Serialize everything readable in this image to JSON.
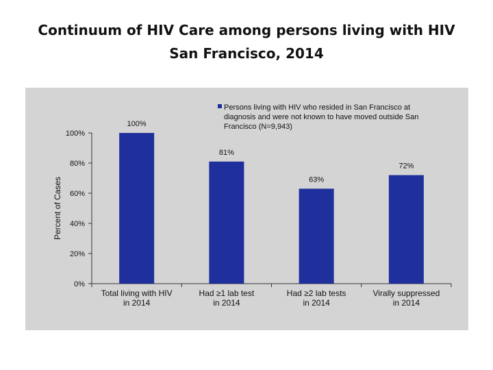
{
  "slide": {
    "title_line1": "Continuum of HIV Care among persons living with HIV",
    "title_line2": "San Francisco, 2014"
  },
  "colors": {
    "bar": "#1f2f9b",
    "panel": "#d4d4d4"
  },
  "chart_data": {
    "type": "bar",
    "categories": [
      [
        "Total living with HIV",
        "in 2014"
      ],
      [
        "Had  ≥1 lab test",
        "in 2014"
      ],
      [
        "Had  ≥2 lab tests",
        "in 2014"
      ],
      [
        "Virally suppressed",
        "in 2014"
      ]
    ],
    "series": [
      {
        "name_lines": [
          "Persons living with HIV who resided in San Francisco at",
          "diagnosis and were not known to have moved outside San",
          "Francisco (N=9,943)"
        ],
        "values": [
          100,
          81,
          63,
          72
        ],
        "labels": [
          "100%",
          "81%",
          "63%",
          "72%"
        ]
      }
    ],
    "ylabel": "Percent of Cases",
    "xlabel": "",
    "ylim": [
      0,
      100
    ],
    "yticks": [
      0,
      20,
      40,
      60,
      80,
      100
    ],
    "ytick_labels": [
      "0%",
      "20%",
      "40%",
      "60%",
      "80%",
      "100%"
    ],
    "legend_position": "top-right",
    "grid": false
  }
}
